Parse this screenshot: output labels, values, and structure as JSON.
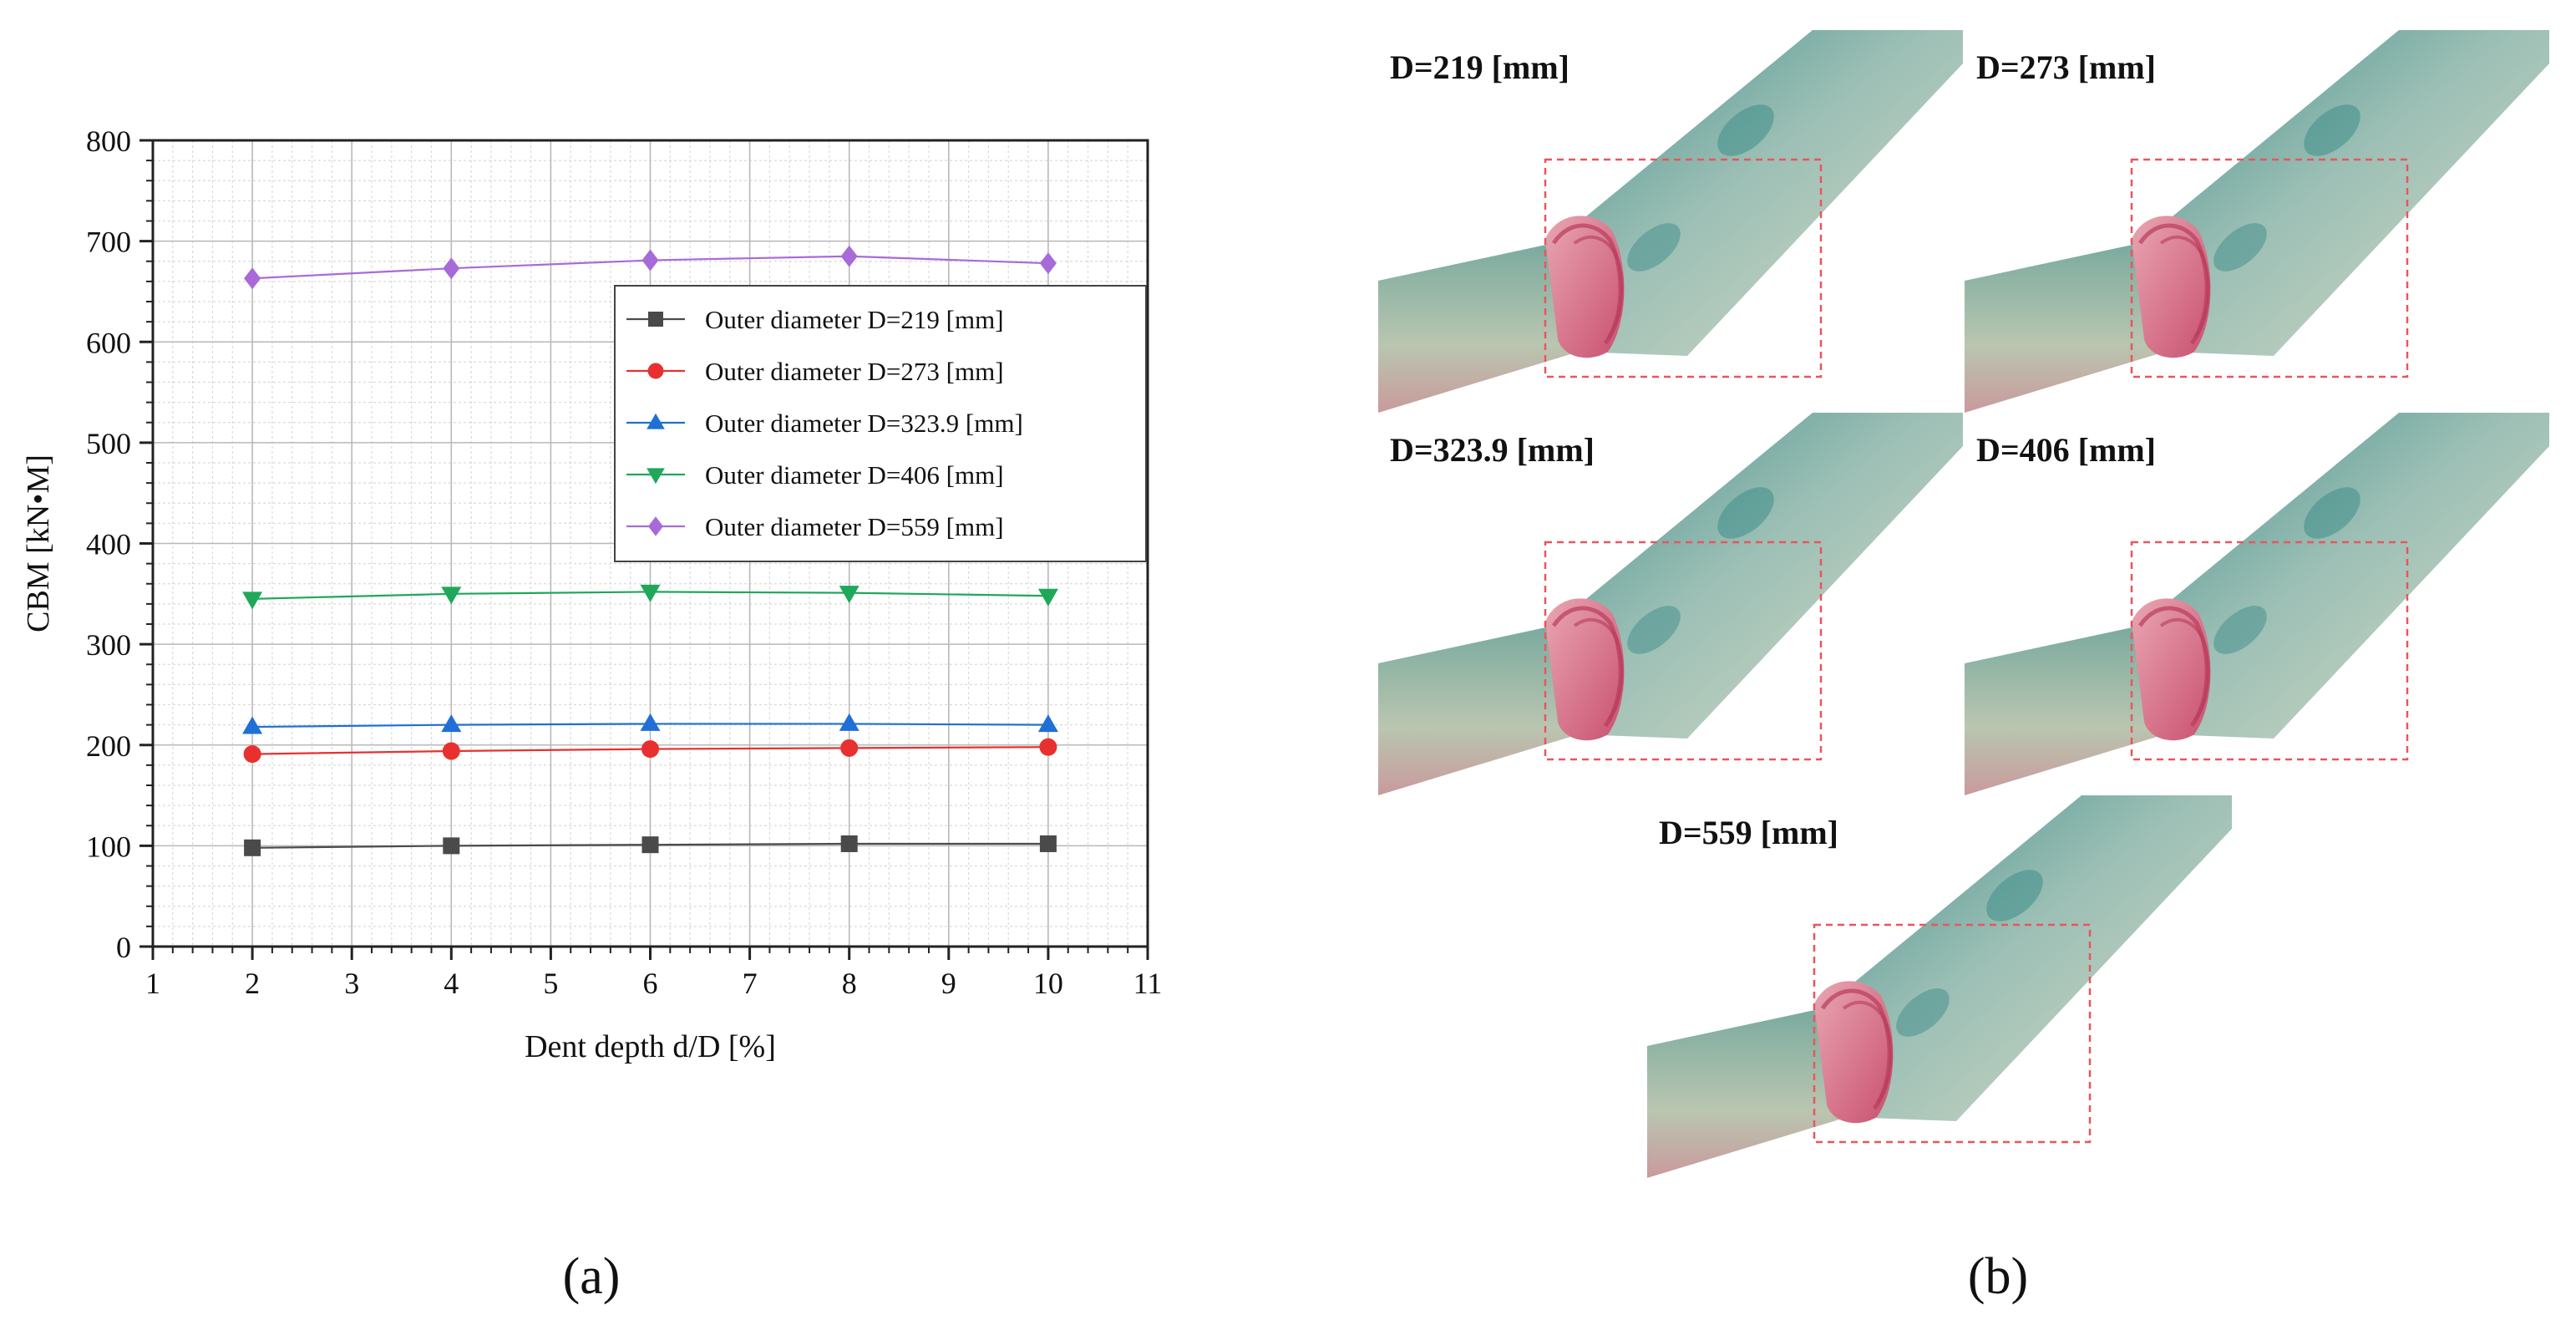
{
  "figure": {
    "panel_a_label": "(a)",
    "panel_b_label": "(b)"
  },
  "chart_data": {
    "type": "line",
    "xlabel": "Dent depth d/D [%]",
    "ylabel": "CBM [kN•M]",
    "xlim": [
      1,
      11
    ],
    "ylim": [
      0,
      800
    ],
    "xticks": [
      1,
      2,
      3,
      4,
      5,
      6,
      7,
      8,
      9,
      10,
      11
    ],
    "yticks": [
      0,
      100,
      200,
      300,
      400,
      500,
      600,
      700,
      800
    ],
    "grid": true,
    "legend_position": "right",
    "x": [
      2,
      4,
      6,
      8,
      10
    ],
    "series": [
      {
        "name": "Outer diameter D=219 [mm]",
        "color": "#4a4a4a",
        "marker": "square",
        "values": [
          98,
          100,
          101,
          102,
          102
        ]
      },
      {
        "name": "Outer diameter D=273 [mm]",
        "color": "#e8302f",
        "marker": "circle",
        "values": [
          191,
          194,
          196,
          197,
          198
        ]
      },
      {
        "name": "Outer diameter D=323.9 [mm]",
        "color": "#1f6fd6",
        "marker": "triangle-up",
        "values": [
          218,
          220,
          221,
          221,
          220
        ]
      },
      {
        "name": "Outer diameter D=406 [mm]",
        "color": "#1fa85a",
        "marker": "triangle-down",
        "values": [
          345,
          350,
          352,
          351,
          348
        ]
      },
      {
        "name": "Outer diameter D=559 [mm]",
        "color": "#a86ad8",
        "marker": "diamond",
        "values": [
          663,
          673,
          681,
          685,
          678
        ]
      }
    ]
  },
  "panel_b": {
    "cases": [
      {
        "label": "D=219 [mm]"
      },
      {
        "label": "D=273 [mm]"
      },
      {
        "label": "D=323.9 [mm]"
      },
      {
        "label": "D=406 [mm]"
      },
      {
        "label": "D=559 [mm]"
      }
    ],
    "colors": {
      "pipe": "#8fb6ad",
      "pipe_light": "#c7d4c2",
      "pipe_dark": "#4a8c86",
      "dent": "#d9617c",
      "box": "#e8565c",
      "backdrop": "#ffffff"
    }
  }
}
